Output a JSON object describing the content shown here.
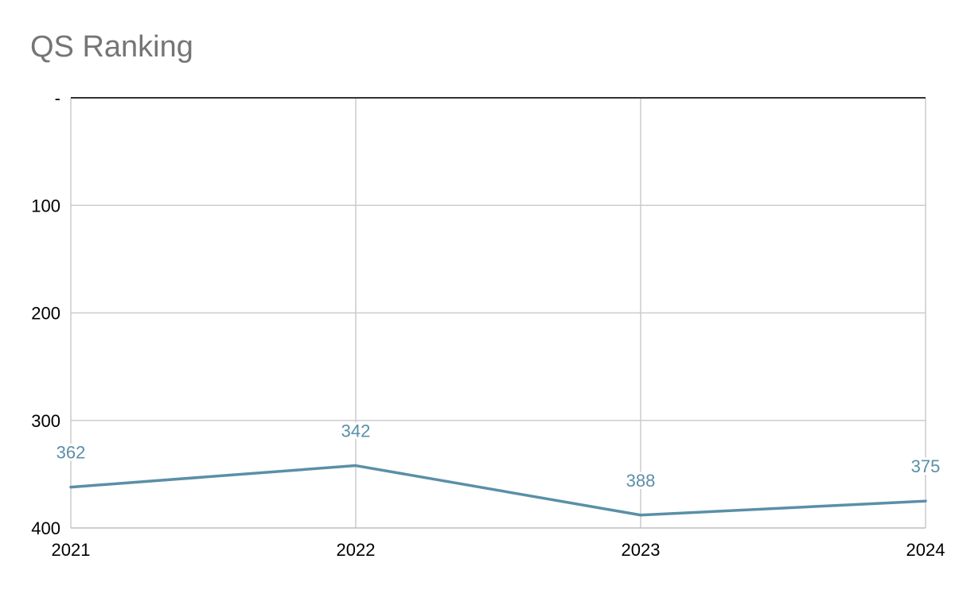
{
  "chart_data": {
    "type": "line",
    "title": "QS Ranking",
    "xlabel": "",
    "ylabel": "",
    "categories": [
      "2021",
      "2022",
      "2023",
      "2024"
    ],
    "series": [
      {
        "values": [
          362,
          342,
          388,
          375
        ],
        "data_labels": [
          "362",
          "342",
          "388",
          "375"
        ]
      }
    ],
    "y_axis": {
      "reversed": true,
      "ylim": [
        0,
        400
      ],
      "ticks": [
        0,
        100,
        200,
        300,
        400
      ],
      "tick_labels": [
        "-",
        "100",
        "200",
        "300",
        "400"
      ]
    },
    "grid": true,
    "legend": "none",
    "colors": {
      "series": "#5a8fa8",
      "grid": "#cccccc",
      "top_axis": "#333333",
      "baseline": "#bdbdbd"
    }
  }
}
